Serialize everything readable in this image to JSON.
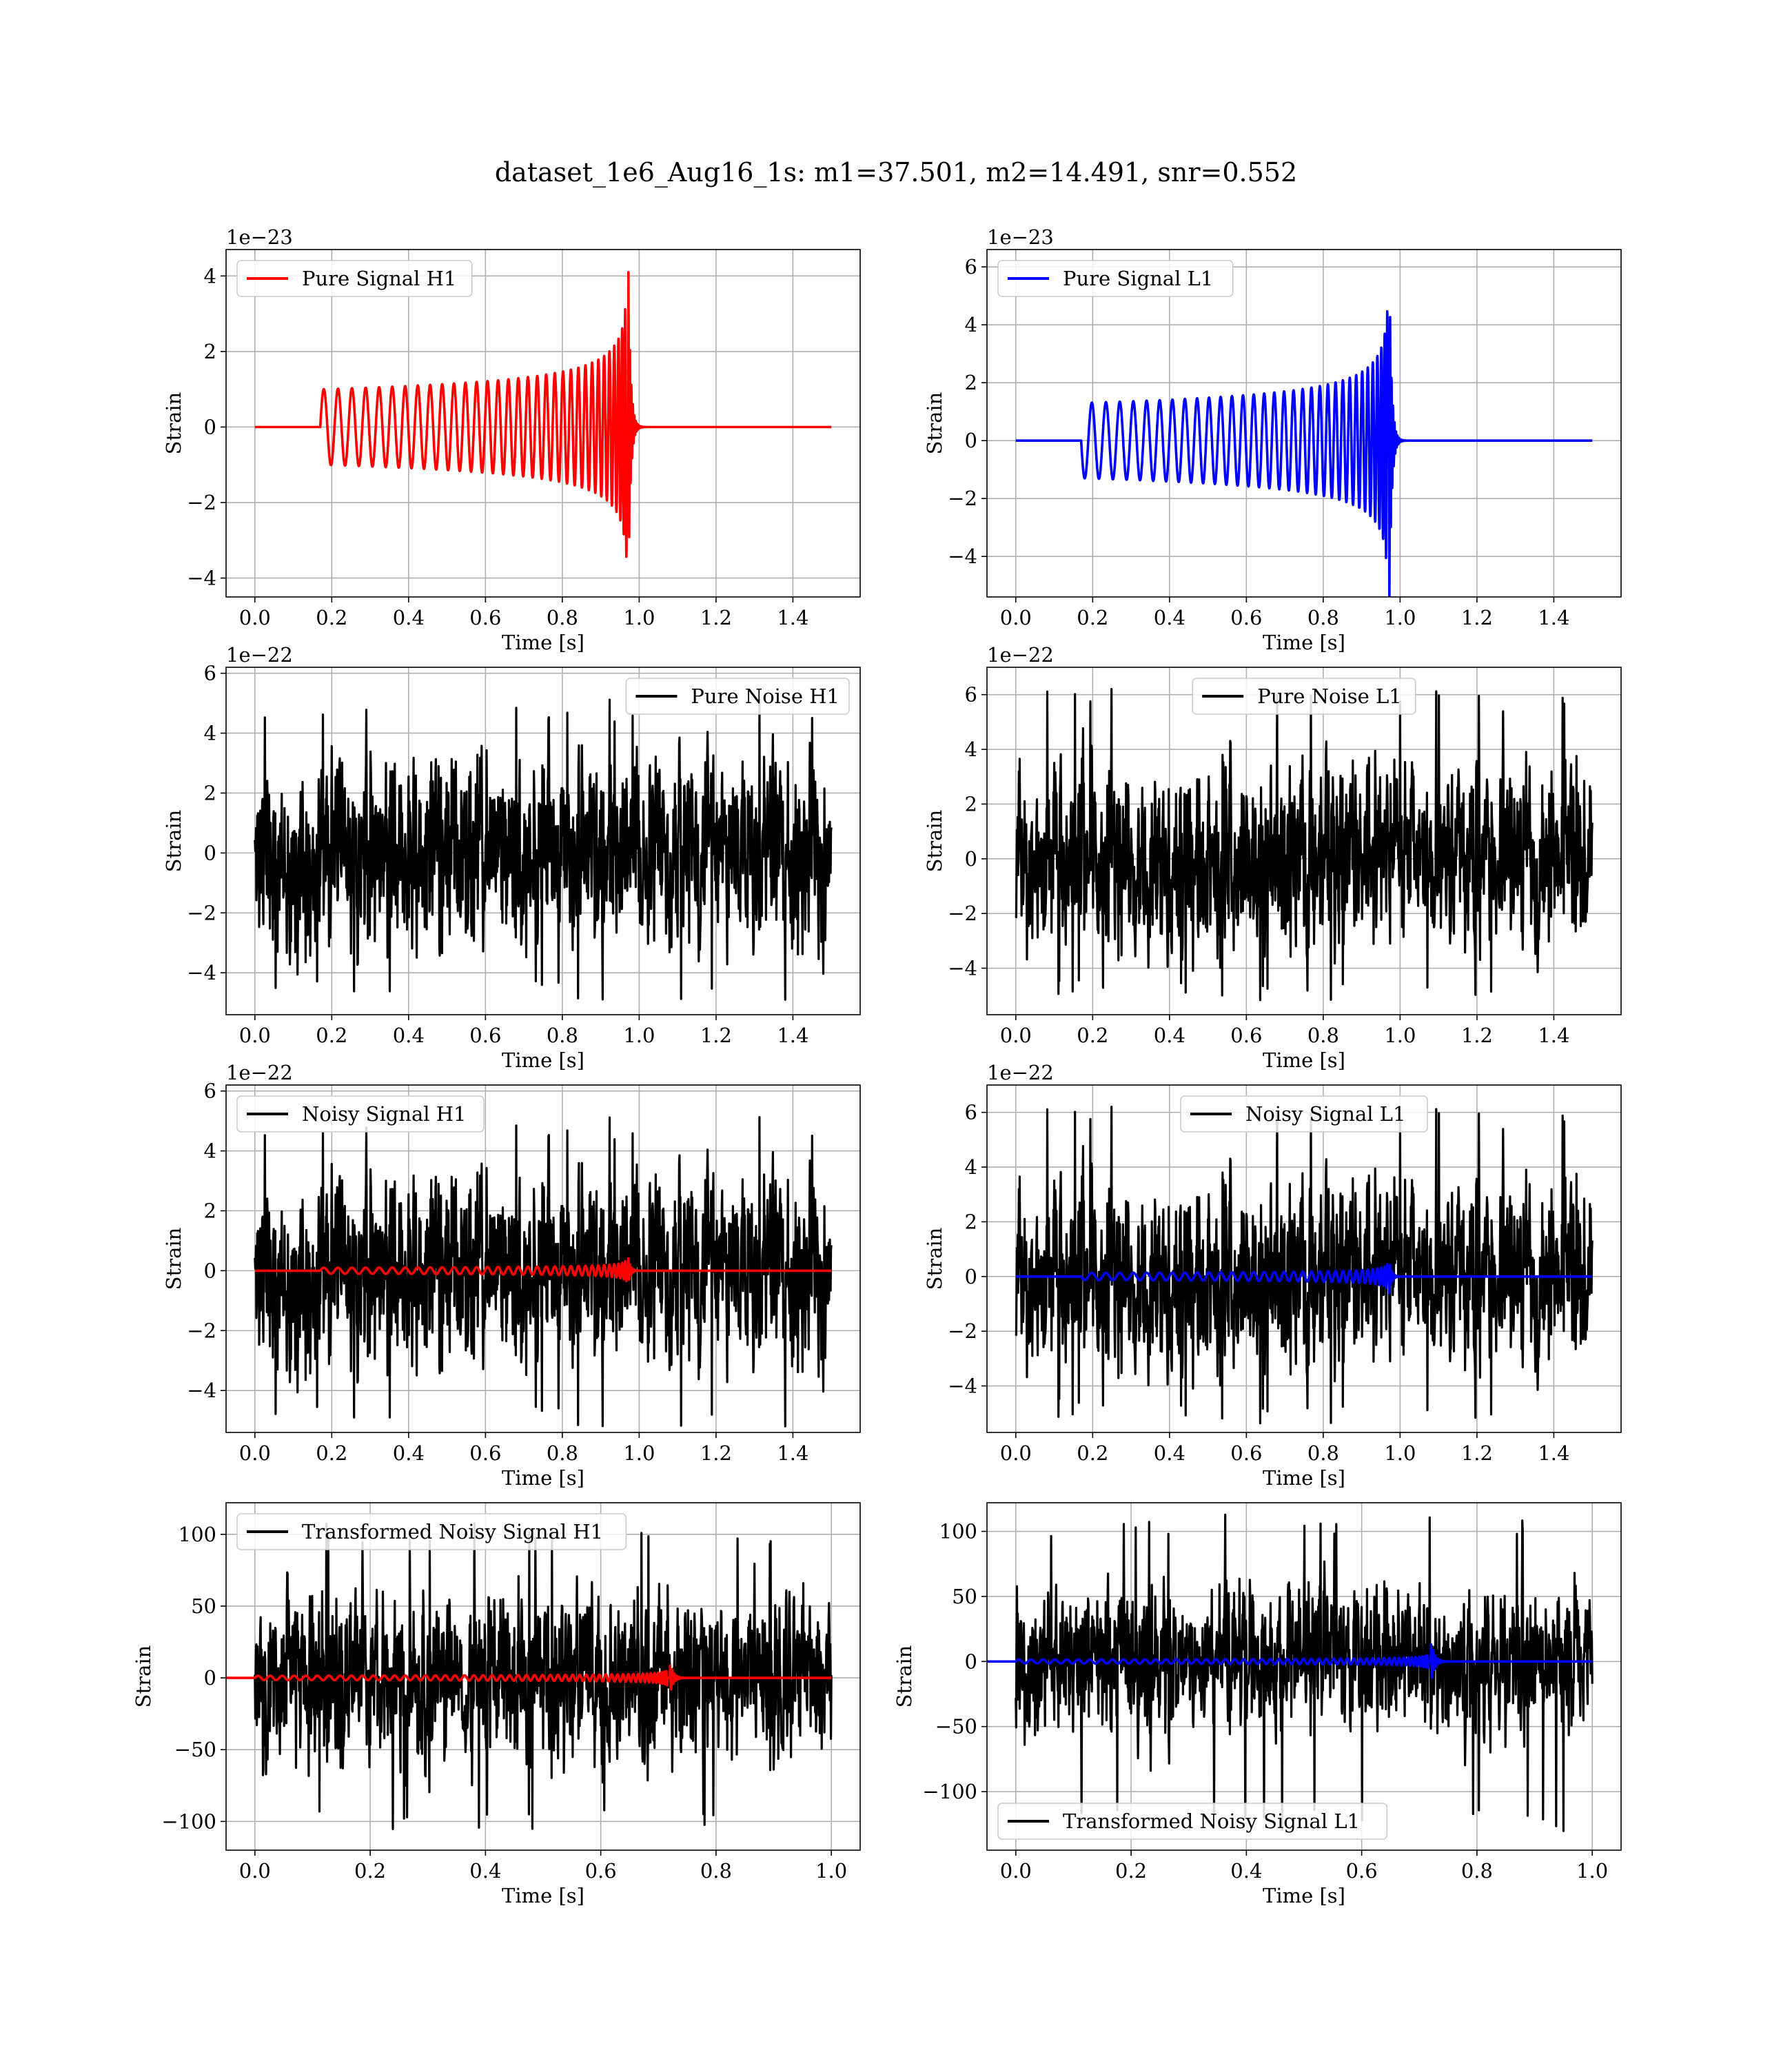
{
  "figure": {
    "title": "dataset_1e6_Aug16_1s: m1=37.501, m2=14.491, snr=0.552",
    "colors": {
      "h1": "#ff0000",
      "l1": "#0000ff",
      "noise": "#000000",
      "grid": "#b0b0b0"
    }
  },
  "chart_data": [
    {
      "type": "line",
      "kind": "chirp",
      "legend": [
        "Pure Signal H1"
      ],
      "legend_loc": "upper-left",
      "xlabel": "Time [s]",
      "ylabel": "Strain",
      "offset_text": "1e−23",
      "xlim": [
        -0.075,
        1.575
      ],
      "ylim": [
        -4.5,
        4.7
      ],
      "xticks": [
        0.0,
        0.2,
        0.4,
        0.6,
        0.8,
        1.0,
        1.2,
        1.4
      ],
      "xtick_labels": [
        "0.0",
        "0.2",
        "0.4",
        "0.6",
        "0.8",
        "1.0",
        "1.2",
        "1.4"
      ],
      "yticks": [
        -4,
        -2,
        0,
        2,
        4
      ],
      "ytick_labels": [
        "−4",
        "−2",
        "0",
        "2",
        "4"
      ],
      "grid": true,
      "series": [
        {
          "color": "#ff0000",
          "chirp": {
            "t_start": 0.17,
            "t_merger": 0.972,
            "t_end": 1.5,
            "amp_start": 1.0,
            "amp_peak": 4.1,
            "n_cycles": 33,
            "sign": 1
          }
        }
      ]
    },
    {
      "type": "line",
      "kind": "chirp",
      "legend": [
        "Pure Signal L1"
      ],
      "legend_loc": "upper-left",
      "xlabel": "Time [s]",
      "ylabel": "Strain",
      "offset_text": "1e−23",
      "xlim": [
        -0.075,
        1.575
      ],
      "ylim": [
        -5.4,
        6.6
      ],
      "xticks": [
        0.0,
        0.2,
        0.4,
        0.6,
        0.8,
        1.0,
        1.2,
        1.4
      ],
      "xtick_labels": [
        "0.0",
        "0.2",
        "0.4",
        "0.6",
        "0.8",
        "1.0",
        "1.2",
        "1.4"
      ],
      "yticks": [
        -4,
        -2,
        0,
        2,
        4,
        6
      ],
      "ytick_labels": [
        "−4",
        "−2",
        "0",
        "2",
        "4",
        "6"
      ],
      "grid": true,
      "series": [
        {
          "color": "#0000ff",
          "chirp": {
            "t_start": 0.17,
            "t_merger": 0.972,
            "t_end": 1.5,
            "amp_start": 1.3,
            "amp_peak": 6.0,
            "n_cycles": 33,
            "sign": -1
          }
        }
      ]
    },
    {
      "type": "line",
      "kind": "noise",
      "legend": [
        "Pure Noise H1"
      ],
      "legend_loc": "upper-right",
      "xlabel": "Time [s]",
      "ylabel": "Strain",
      "offset_text": "1e−22",
      "xlim": [
        -0.075,
        1.575
      ],
      "ylim": [
        -5.4,
        6.2
      ],
      "xticks": [
        0.0,
        0.2,
        0.4,
        0.6,
        0.8,
        1.0,
        1.2,
        1.4
      ],
      "xtick_labels": [
        "0.0",
        "0.2",
        "0.4",
        "0.6",
        "0.8",
        "1.0",
        "1.2",
        "1.4"
      ],
      "yticks": [
        -4,
        -2,
        0,
        2,
        4,
        6
      ],
      "ytick_labels": [
        "−4",
        "−2",
        "0",
        "2",
        "4",
        "6"
      ],
      "grid": true,
      "series": [
        {
          "color": "#000000",
          "noise": {
            "t_start": 0.0,
            "t_end": 1.5,
            "sigma": 1.6,
            "max": 5.2,
            "min": -4.9,
            "seed": 11
          }
        }
      ]
    },
    {
      "type": "line",
      "kind": "noise",
      "legend": [
        "Pure Noise L1"
      ],
      "legend_loc": "upper-center",
      "xlabel": "Time [s]",
      "ylabel": "Strain",
      "offset_text": "1e−22",
      "xlim": [
        -0.075,
        1.575
      ],
      "ylim": [
        -5.7,
        7.0
      ],
      "xticks": [
        0.0,
        0.2,
        0.4,
        0.6,
        0.8,
        1.0,
        1.2,
        1.4
      ],
      "xtick_labels": [
        "0.0",
        "0.2",
        "0.4",
        "0.6",
        "0.8",
        "1.0",
        "1.2",
        "1.4"
      ],
      "yticks": [
        -4,
        -2,
        0,
        2,
        4,
        6
      ],
      "ytick_labels": [
        "−4",
        "−2",
        "0",
        "2",
        "4",
        "6"
      ],
      "grid": true,
      "series": [
        {
          "color": "#000000",
          "noise": {
            "t_start": 0.0,
            "t_end": 1.5,
            "sigma": 1.7,
            "max": 6.4,
            "min": -5.2,
            "seed": 23
          }
        }
      ]
    },
    {
      "type": "line",
      "kind": "noise+chirp",
      "legend": [
        "Noisy Signal H1"
      ],
      "legend_loc": "upper-left",
      "xlabel": "Time [s]",
      "ylabel": "Strain",
      "offset_text": "1e−22",
      "xlim": [
        -0.075,
        1.575
      ],
      "ylim": [
        -5.4,
        6.2
      ],
      "xticks": [
        0.0,
        0.2,
        0.4,
        0.6,
        0.8,
        1.0,
        1.2,
        1.4
      ],
      "xtick_labels": [
        "0.0",
        "0.2",
        "0.4",
        "0.6",
        "0.8",
        "1.0",
        "1.2",
        "1.4"
      ],
      "yticks": [
        -4,
        -2,
        0,
        2,
        4,
        6
      ],
      "ytick_labels": [
        "−4",
        "−2",
        "0",
        "2",
        "4",
        "6"
      ],
      "grid": true,
      "series": [
        {
          "color": "#000000",
          "noise": {
            "t_start": 0.0,
            "t_end": 1.5,
            "sigma": 1.6,
            "max": 5.2,
            "min": -5.2,
            "seed": 11
          }
        },
        {
          "color": "#ff0000",
          "chirp": {
            "t_start": 0.17,
            "t_merger": 0.972,
            "t_end": 1.5,
            "amp_start": 0.1,
            "amp_peak": 0.41,
            "n_cycles": 33,
            "sign": 1
          }
        }
      ]
    },
    {
      "type": "line",
      "kind": "noise+chirp",
      "legend": [
        "Noisy Signal L1"
      ],
      "legend_loc": "upper-center",
      "xlabel": "Time [s]",
      "ylabel": "Strain",
      "offset_text": "1e−22",
      "xlim": [
        -0.075,
        1.575
      ],
      "ylim": [
        -5.7,
        7.0
      ],
      "xticks": [
        0.0,
        0.2,
        0.4,
        0.6,
        0.8,
        1.0,
        1.2,
        1.4
      ],
      "xtick_labels": [
        "0.0",
        "0.2",
        "0.4",
        "0.6",
        "0.8",
        "1.0",
        "1.2",
        "1.4"
      ],
      "yticks": [
        -4,
        -2,
        0,
        2,
        4,
        6
      ],
      "ytick_labels": [
        "−4",
        "−2",
        "0",
        "2",
        "4",
        "6"
      ],
      "grid": true,
      "series": [
        {
          "color": "#000000",
          "noise": {
            "t_start": 0.0,
            "t_end": 1.5,
            "sigma": 1.7,
            "max": 6.4,
            "min": -5.4,
            "seed": 23
          }
        },
        {
          "color": "#0000ff",
          "chirp": {
            "t_start": 0.17,
            "t_merger": 0.972,
            "t_end": 1.5,
            "amp_start": 0.13,
            "amp_peak": 0.6,
            "n_cycles": 33,
            "sign": -1
          }
        }
      ]
    },
    {
      "type": "line",
      "kind": "noise+chirp",
      "legend": [
        "Transformed Noisy Signal H1"
      ],
      "legend_loc": "upper-left",
      "xlabel": "Time [s]",
      "ylabel": "Strain",
      "offset_text": "",
      "xlim": [
        -0.05,
        1.05
      ],
      "ylim": [
        -120,
        122
      ],
      "xticks": [
        0.0,
        0.2,
        0.4,
        0.6,
        0.8,
        1.0
      ],
      "xtick_labels": [
        "0.0",
        "0.2",
        "0.4",
        "0.6",
        "0.8",
        "1.0"
      ],
      "yticks": [
        -100,
        -50,
        0,
        50,
        100
      ],
      "ytick_labels": [
        "−100",
        "−50",
        "0",
        "50",
        "100"
      ],
      "grid": true,
      "series": [
        {
          "color": "#000000",
          "noise": {
            "t_start": 0.0,
            "t_end": 1.0,
            "sigma": 30,
            "max": 108,
            "min": -108,
            "seed": 37
          }
        },
        {
          "color": "#ff0000",
          "chirp": {
            "t_start": 0.0,
            "t_merger": 0.72,
            "t_end": 1.0,
            "amp_start": 1.5,
            "amp_peak": 11,
            "n_cycles": 52,
            "sign": 1
          }
        }
      ]
    },
    {
      "type": "line",
      "kind": "noise+chirp",
      "legend": [
        "Transformed Noisy Signal L1"
      ],
      "legend_loc": "lower-left",
      "xlabel": "Time [s]",
      "ylabel": "Strain",
      "offset_text": "",
      "xlim": [
        -0.05,
        1.05
      ],
      "ylim": [
        -145,
        122
      ],
      "xticks": [
        0.0,
        0.2,
        0.4,
        0.6,
        0.8,
        1.0
      ],
      "xtick_labels": [
        "0.0",
        "0.2",
        "0.4",
        "0.6",
        "0.8",
        "1.0"
      ],
      "yticks": [
        -100,
        -50,
        0,
        50,
        100
      ],
      "ytick_labels": [
        "−100",
        "−50",
        "0",
        "50",
        "100"
      ],
      "grid": true,
      "series": [
        {
          "color": "#000000",
          "noise": {
            "t_start": 0.0,
            "t_end": 1.0,
            "sigma": 28,
            "max": 113,
            "min": -133,
            "seed": 53
          }
        },
        {
          "color": "#0000ff",
          "chirp": {
            "t_start": 0.0,
            "t_merger": 0.72,
            "t_end": 1.0,
            "amp_start": 1.5,
            "amp_peak": 17,
            "n_cycles": 52,
            "sign": 1
          }
        }
      ]
    }
  ]
}
